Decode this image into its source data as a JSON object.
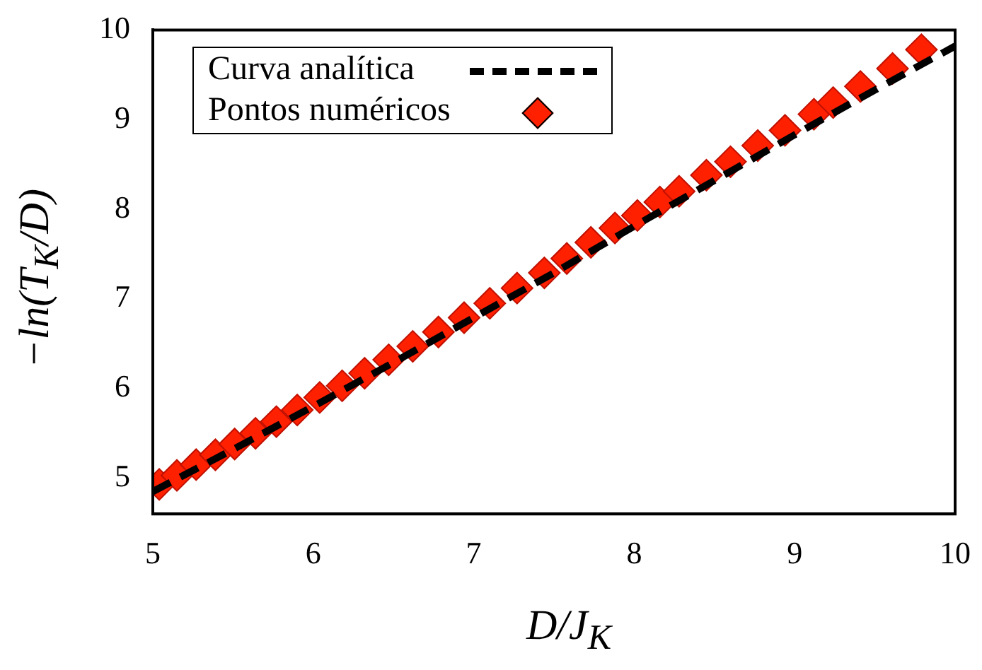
{
  "chart_data": {
    "type": "scatter",
    "xlabel": "D/J$_{K}$",
    "ylabel": "−ln(T$_{K}$/D)",
    "xlim": [
      5,
      10
    ],
    "ylim": [
      4.6,
      10
    ],
    "xticks": [
      5,
      6,
      7,
      8,
      9,
      10
    ],
    "yticks": [
      5,
      6,
      7,
      8,
      9,
      10
    ],
    "grid": false,
    "legend": "top left",
    "series": [
      {
        "name": "Curva analítica",
        "type": "line",
        "color": "#000000",
        "marker": "none",
        "line_style": "dashed",
        "x": [
          5,
          5.5,
          6,
          6.5,
          7,
          7.5,
          8,
          8.5,
          9,
          9.5,
          10
        ],
        "values": [
          4.85,
          5.32,
          5.8,
          6.29,
          6.79,
          7.29,
          7.81,
          8.32,
          8.83,
          9.33,
          9.82
        ]
      },
      {
        "name": "Pontos numéricos",
        "type": "scatter",
        "color": "#ff2000",
        "marker": "diamond",
        "x": [
          5.04,
          5.15,
          5.27,
          5.39,
          5.51,
          5.64,
          5.77,
          5.9,
          6.04,
          6.18,
          6.32,
          6.47,
          6.62,
          6.78,
          6.94,
          7.1,
          7.27,
          7.44,
          7.58,
          7.73,
          7.88,
          8.02,
          8.16,
          8.28,
          8.45,
          8.6,
          8.77,
          8.94,
          9.12,
          9.24,
          9.41,
          9.61,
          9.79
        ],
        "values": [
          4.93,
          5.03,
          5.15,
          5.26,
          5.38,
          5.5,
          5.63,
          5.76,
          5.9,
          6.03,
          6.17,
          6.32,
          6.47,
          6.63,
          6.79,
          6.95,
          7.12,
          7.29,
          7.45,
          7.63,
          7.79,
          7.93,
          8.08,
          8.2,
          8.38,
          8.53,
          8.71,
          8.88,
          9.06,
          9.19,
          9.37,
          9.57,
          9.78
        ]
      }
    ]
  }
}
